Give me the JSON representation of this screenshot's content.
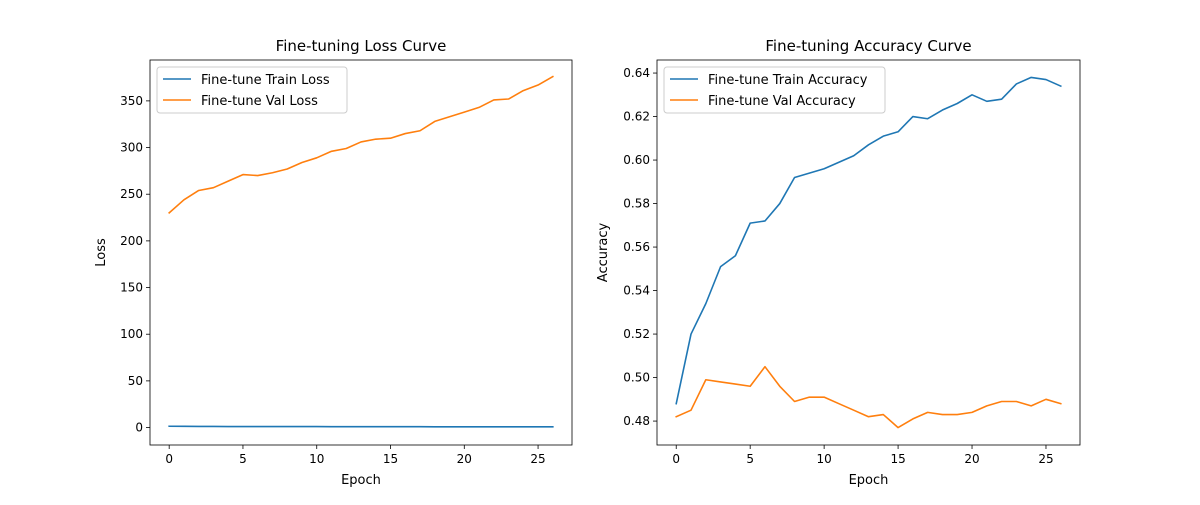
{
  "chart_data": [
    {
      "type": "line",
      "title": "Fine-tuning Loss Curve",
      "xlabel": "Epoch",
      "ylabel": "Loss",
      "xlim": [
        -1.3,
        27.3
      ],
      "ylim": [
        -18.7,
        393.8
      ],
      "xticks": [
        0,
        5,
        10,
        15,
        20,
        25
      ],
      "yticks": [
        0,
        50,
        100,
        150,
        200,
        250,
        300,
        350
      ],
      "legend": "top-left",
      "grid": false,
      "x": [
        0,
        1,
        2,
        3,
        4,
        5,
        6,
        7,
        8,
        9,
        10,
        11,
        12,
        13,
        14,
        15,
        16,
        17,
        18,
        19,
        20,
        21,
        22,
        23,
        24,
        25,
        26
      ],
      "series": [
        {
          "name": "Fine-tune Train Loss",
          "color": "#1f77b4",
          "values": [
            1.4,
            1.3,
            1.2,
            1.2,
            1.1,
            1.1,
            1.1,
            1.0,
            1.0,
            1.0,
            1.0,
            0.9,
            0.9,
            0.9,
            0.9,
            0.9,
            0.9,
            0.9,
            0.8,
            0.8,
            0.8,
            0.8,
            0.8,
            0.8,
            0.8,
            0.8,
            0.8
          ]
        },
        {
          "name": "Fine-tune Val Loss",
          "color": "#ff7f0e",
          "values": [
            230,
            244,
            254,
            257,
            264,
            271,
            270,
            273,
            277,
            284,
            289,
            296,
            299,
            306,
            309,
            310,
            315,
            318,
            328,
            333,
            338,
            343,
            351,
            352,
            361,
            367,
            376
          ]
        }
      ]
    },
    {
      "type": "line",
      "title": "Fine-tuning Accuracy Curve",
      "xlabel": "Epoch",
      "ylabel": "Accuracy",
      "xlim": [
        -1.3,
        27.3
      ],
      "ylim": [
        0.469,
        0.646
      ],
      "xticks": [
        0,
        5,
        10,
        15,
        20,
        25
      ],
      "yticks": [
        0.48,
        0.5,
        0.52,
        0.54,
        0.56,
        0.58,
        0.6,
        0.62,
        0.64
      ],
      "ytick_labels": [
        "0.48",
        "0.50",
        "0.52",
        "0.54",
        "0.56",
        "0.58",
        "0.60",
        "0.62",
        "0.64"
      ],
      "legend": "top-left",
      "grid": false,
      "x": [
        0,
        1,
        2,
        3,
        4,
        5,
        6,
        7,
        8,
        9,
        10,
        11,
        12,
        13,
        14,
        15,
        16,
        17,
        18,
        19,
        20,
        21,
        22,
        23,
        24,
        25,
        26
      ],
      "series": [
        {
          "name": "Fine-tune Train Accuracy",
          "color": "#1f77b4",
          "values": [
            0.488,
            0.52,
            0.534,
            0.551,
            0.556,
            0.571,
            0.572,
            0.58,
            0.592,
            0.594,
            0.596,
            0.599,
            0.602,
            0.607,
            0.611,
            0.613,
            0.62,
            0.619,
            0.623,
            0.626,
            0.63,
            0.627,
            0.628,
            0.635,
            0.638,
            0.637,
            0.634
          ]
        },
        {
          "name": "Fine-tune Val Accuracy",
          "color": "#ff7f0e",
          "values": [
            0.482,
            0.485,
            0.499,
            0.498,
            0.497,
            0.496,
            0.505,
            0.496,
            0.489,
            0.491,
            0.491,
            0.488,
            0.485,
            0.482,
            0.483,
            0.477,
            0.481,
            0.484,
            0.483,
            0.483,
            0.484,
            0.487,
            0.489,
            0.489,
            0.487,
            0.49,
            0.488
          ]
        }
      ]
    }
  ]
}
